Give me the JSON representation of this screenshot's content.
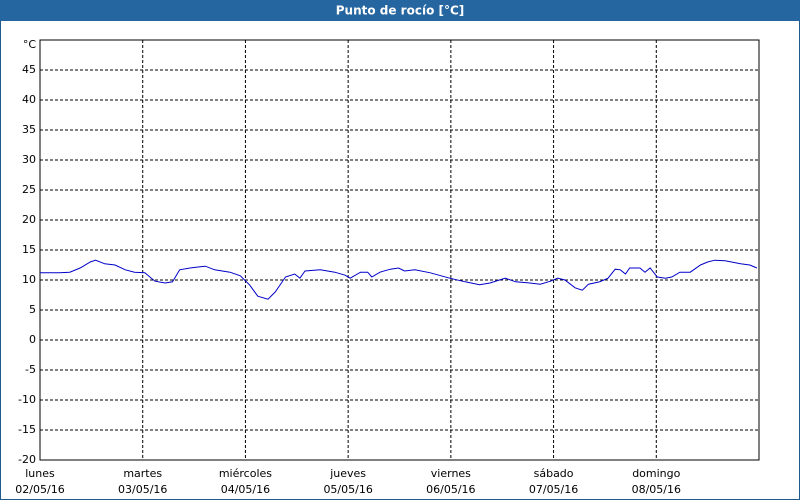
{
  "chart_data": {
    "type": "line",
    "title": "Punto de rocío [°C]",
    "x": [
      0,
      0.19,
      0.29,
      0.39,
      0.49,
      0.54,
      0.63,
      0.73,
      0.83,
      0.92,
      1.02,
      1.12,
      1.22,
      1.29,
      1.36,
      1.46,
      1.56,
      1.61,
      1.7,
      1.85,
      1.95,
      2.04,
      2.12,
      2.22,
      2.29,
      2.39,
      2.48,
      2.53,
      2.58,
      2.73,
      2.87,
      2.97,
      3.02,
      3.12,
      3.19,
      3.23,
      3.31,
      3.41,
      3.49,
      3.55,
      3.65,
      3.8,
      3.99,
      4.14,
      4.28,
      4.38,
      4.53,
      4.63,
      4.77,
      4.87,
      4.97,
      5.04,
      5.11,
      5.21,
      5.28,
      5.34,
      5.45,
      5.53,
      5.6,
      5.65,
      5.7,
      5.74,
      5.84,
      5.89,
      5.94,
      6.01,
      6.09,
      6.15,
      6.23,
      6.33,
      6.43,
      6.5,
      6.57,
      6.67,
      6.82,
      6.91,
      6.98
    ],
    "values": [
      11.2,
      11.2,
      11.3,
      12,
      13,
      13.3,
      12.7,
      12.5,
      11.7,
      11.3,
      11.2,
      9.8,
      9.5,
      9.7,
      11.7,
      12,
      12.2,
      12.3,
      11.7,
      11.3,
      10.7,
      9.2,
      7.3,
      6.8,
      8,
      10.5,
      11,
      10.3,
      11.5,
      11.7,
      11.3,
      10.8,
      10.3,
      11.3,
      11.3,
      10.5,
      11.3,
      11.8,
      12,
      11.5,
      11.7,
      11.2,
      10.3,
      9.7,
      9.2,
      9.5,
      10.3,
      9.7,
      9.5,
      9.3,
      9.8,
      10.3,
      10,
      8.7,
      8.3,
      9.3,
      9.7,
      10.3,
      11.8,
      11.7,
      11,
      12,
      12,
      11.3,
      12,
      10.5,
      10.3,
      10.5,
      11.3,
      11.3,
      12.5,
      13,
      13.3,
      13.2,
      12.7,
      12.5,
      12
    ],
    "color": "#0000c8",
    "xlim": [
      0,
      7
    ],
    "xticks": [
      {
        "value": 0,
        "label": "lunes"
      },
      {
        "value": 1,
        "label": "martes"
      },
      {
        "value": 2,
        "label": "miércoles"
      },
      {
        "value": 3,
        "label": "jueves"
      },
      {
        "value": 4,
        "label": "viernes"
      },
      {
        "value": 5,
        "label": "sábado"
      },
      {
        "value": 6,
        "label": "domingo"
      }
    ],
    "xtick_dates": [
      "02/05/16",
      "03/05/16",
      "04/05/16",
      "05/05/16",
      "06/05/16",
      "07/05/16",
      "08/05/16"
    ],
    "ylim": [
      -20,
      50
    ],
    "yticks": [
      -20,
      -15,
      -10,
      -5,
      0,
      5,
      10,
      15,
      20,
      25,
      30,
      35,
      40,
      45,
      {
        "value": 50,
        "label": "°C"
      }
    ],
    "grid": true
  }
}
